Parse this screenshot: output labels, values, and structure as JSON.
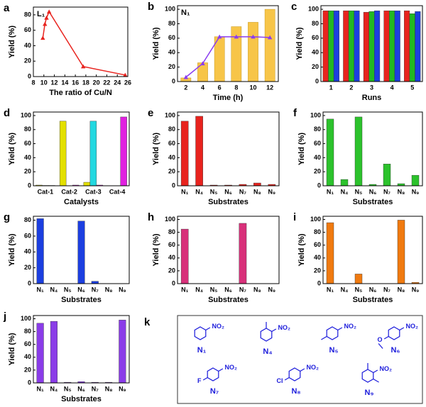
{
  "chart_data": [
    {
      "type": "line",
      "panel": "a",
      "annotation": "L₁",
      "xlabel": "The ratio of Cu/N",
      "ylabel": "Yield (%)",
      "x": [
        9.8,
        10.2,
        10.5,
        11,
        17.5,
        25.5
      ],
      "series": [
        {
          "color": "#e8231e",
          "values": [
            50,
            68,
            76,
            84,
            13,
            2
          ]
        }
      ],
      "xlim": [
        8,
        26
      ],
      "xticks": [
        8,
        10,
        12,
        14,
        16,
        18,
        20,
        22,
        24,
        26
      ],
      "ylim": [
        0,
        90
      ],
      "yticks": [
        0,
        20,
        40,
        60,
        80
      ]
    },
    {
      "type": "combo",
      "panel": "b",
      "annotation": "N₁",
      "xlabel": "Time (h)",
      "ylabel": "Yield (%)",
      "x": [
        2,
        4,
        6,
        8,
        10,
        12
      ],
      "series": [
        {
          "type": "bar",
          "color": "#f7c548",
          "values": [
            5,
            26,
            62,
            76,
            82,
            100
          ]
        },
        {
          "type": "line",
          "color": "#8a3cf0",
          "values": [
            6,
            25,
            62,
            62,
            62,
            61
          ]
        }
      ],
      "xlim": [
        1,
        13
      ],
      "xticks": [
        2,
        4,
        6,
        8,
        10,
        12
      ],
      "ylim": [
        0,
        105
      ],
      "yticks": [
        0,
        20,
        40,
        60,
        80,
        100
      ]
    },
    {
      "type": "bar",
      "panel": "c",
      "xlabel": "Runs",
      "ylabel": "Yield (%)",
      "categories": [
        "1",
        "2",
        "3",
        "4",
        "5"
      ],
      "series": [
        {
          "color": "#e8231e",
          "values": [
            98,
            98,
            96,
            98,
            98
          ]
        },
        {
          "color": "#22b822",
          "values": [
            98,
            98,
            97,
            98,
            94
          ]
        },
        {
          "color": "#1c3fe0",
          "values": [
            98,
            98,
            98,
            98,
            97
          ]
        }
      ],
      "ylim": [
        0,
        105
      ],
      "yticks": [
        0,
        20,
        40,
        60,
        80,
        100
      ]
    },
    {
      "type": "bar",
      "panel": "d",
      "xlabel": "Catalysts",
      "ylabel": "Yield (%)",
      "categories": [
        "Cat-1",
        "Cat-2",
        "Cat-3",
        "Cat-4"
      ],
      "series": [
        {
          "color": "#e3e000",
          "values": [
            1,
            92,
            5,
            0
          ]
        },
        {
          "color": "#22d8e0",
          "values": [
            0.5,
            0,
            92,
            0
          ]
        },
        {
          "color": "#e020e0",
          "values": [
            0.5,
            1,
            1,
            98
          ]
        }
      ],
      "ylim": [
        0,
        105
      ],
      "yticks": [
        0,
        20,
        40,
        60,
        80,
        100
      ]
    },
    {
      "type": "bar",
      "panel": "e",
      "xlabel": "Substrates",
      "ylabel": "Yield (%)",
      "categories": [
        "N₁",
        "N₄",
        "N₅",
        "N₆",
        "N₇",
        "N₈",
        "N₉"
      ],
      "series": [
        {
          "color": "#e8231e",
          "values": [
            92,
            99,
            1,
            1,
            2,
            4,
            2
          ]
        }
      ],
      "ylim": [
        0,
        105
      ],
      "yticks": [
        0,
        20,
        40,
        60,
        80,
        100
      ]
    },
    {
      "type": "bar",
      "panel": "f",
      "xlabel": "Substrates",
      "ylabel": "Yield (%)",
      "categories": [
        "N₁",
        "N₄",
        "N₅",
        "N₆",
        "N₇",
        "N₈",
        "N₉"
      ],
      "series": [
        {
          "color": "#2cc22c",
          "values": [
            95,
            9,
            98,
            2,
            31,
            3,
            15
          ]
        }
      ],
      "ylim": [
        0,
        105
      ],
      "yticks": [
        0,
        20,
        40,
        60,
        80,
        100
      ]
    },
    {
      "type": "bar",
      "panel": "g",
      "xlabel": "Substrates",
      "ylabel": "Yield (%)",
      "categories": [
        "N₁",
        "N₄",
        "N₅",
        "N₆",
        "N₇",
        "N₈",
        "N₉"
      ],
      "series": [
        {
          "color": "#1c3fe0",
          "values": [
            82,
            0,
            0,
            79,
            3,
            0,
            0
          ]
        }
      ],
      "ylim": [
        0,
        85
      ],
      "yticks": [
        0,
        20,
        40,
        60,
        80
      ]
    },
    {
      "type": "bar",
      "panel": "h",
      "xlabel": "Substrates",
      "ylabel": "Yield (%)",
      "categories": [
        "N₁",
        "N₄",
        "N₅",
        "N₆",
        "N₇",
        "N₈",
        "N₉"
      ],
      "series": [
        {
          "color": "#d8307a",
          "values": [
            85,
            0,
            0,
            0,
            94,
            0,
            0
          ]
        }
      ],
      "ylim": [
        0,
        105
      ],
      "yticks": [
        0,
        20,
        40,
        60,
        80,
        100
      ]
    },
    {
      "type": "bar",
      "panel": "i",
      "xlabel": "Substrates",
      "ylabel": "Yield (%)",
      "categories": [
        "N₁",
        "N₄",
        "N₅",
        "N₆",
        "N₇",
        "N₈",
        "N₉"
      ],
      "series": [
        {
          "color": "#f07a10",
          "values": [
            95,
            0,
            15,
            0,
            0,
            99,
            2
          ]
        }
      ],
      "ylim": [
        0,
        105
      ],
      "yticks": [
        0,
        20,
        40,
        60,
        80,
        100
      ]
    },
    {
      "type": "bar",
      "panel": "j",
      "xlabel": "Substrates",
      "ylabel": "Yield (%)",
      "categories": [
        "N₁",
        "N₄",
        "N₅",
        "N₆",
        "N₇",
        "N₈",
        "N₉"
      ],
      "series": [
        {
          "color": "#8a3ce8",
          "values": [
            93,
            96,
            1,
            2,
            1,
            1,
            98
          ]
        }
      ],
      "ylim": [
        0,
        105
      ],
      "yticks": [
        0,
        20,
        40,
        60,
        80,
        100
      ]
    }
  ],
  "structures": {
    "panel": "k",
    "items": [
      {
        "name": "N₁",
        "groups": [
          "NO₂"
        ]
      },
      {
        "name": "N₄",
        "groups": [
          "NO₂"
        ]
      },
      {
        "name": "N₅",
        "groups": [
          "NO₂"
        ]
      },
      {
        "name": "N₆",
        "groups": [
          "NO₂",
          "O"
        ]
      },
      {
        "name": "N₇",
        "groups": [
          "NO₂",
          "F"
        ]
      },
      {
        "name": "N₈",
        "groups": [
          "NO₂",
          "Cl"
        ]
      },
      {
        "name": "N₉",
        "groups": [
          "NO₂"
        ]
      }
    ]
  }
}
